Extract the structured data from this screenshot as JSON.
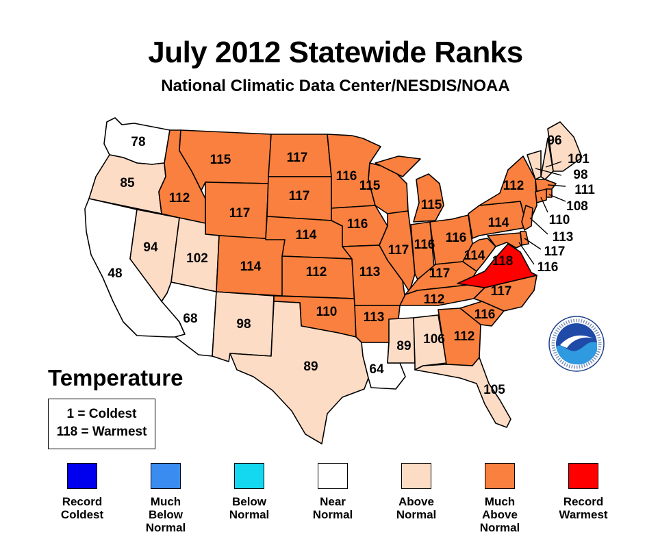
{
  "title": "July 2012 Statewide Ranks",
  "subtitle": "National Climatic Data Center/NESDIS/NOAA",
  "variable_heading": "Temperature",
  "scale_note": {
    "low": "1 = Coldest",
    "high": "118 = Warmest"
  },
  "colors": {
    "record_coldest": "#0000ee",
    "much_below": "#3a8cf0",
    "below": "#14d8f0",
    "near": "#ffffff",
    "above": "#fddcc6",
    "much_above": "#f9803e",
    "record_warmest": "#ff0000"
  },
  "legend": [
    {
      "key": "record_coldest",
      "label": "Record\nColdest"
    },
    {
      "key": "much_below",
      "label": "Much\nBelow\nNormal"
    },
    {
      "key": "below",
      "label": "Below\nNormal"
    },
    {
      "key": "near",
      "label": "Near\nNormal"
    },
    {
      "key": "above",
      "label": "Above\nNormal"
    },
    {
      "key": "much_above",
      "label": "Much\nAbove\nNormal"
    },
    {
      "key": "record_warmest",
      "label": "Record\nWarmest"
    }
  ],
  "states": [
    {
      "id": "WA",
      "rank": "78",
      "category": "near"
    },
    {
      "id": "OR",
      "rank": "85",
      "category": "above"
    },
    {
      "id": "CA",
      "rank": "48",
      "category": "near"
    },
    {
      "id": "NV",
      "rank": "94",
      "category": "above"
    },
    {
      "id": "ID",
      "rank": "112",
      "category": "much_above"
    },
    {
      "id": "MT",
      "rank": "115",
      "category": "much_above"
    },
    {
      "id": "WY",
      "rank": "117",
      "category": "much_above"
    },
    {
      "id": "UT",
      "rank": "102",
      "category": "above"
    },
    {
      "id": "AZ",
      "rank": "68",
      "category": "near"
    },
    {
      "id": "CO",
      "rank": "114",
      "category": "much_above"
    },
    {
      "id": "NM",
      "rank": "98",
      "category": "above"
    },
    {
      "id": "ND",
      "rank": "117",
      "category": "much_above"
    },
    {
      "id": "SD",
      "rank": "117",
      "category": "much_above"
    },
    {
      "id": "NE",
      "rank": "114",
      "category": "much_above"
    },
    {
      "id": "KS",
      "rank": "112",
      "category": "much_above"
    },
    {
      "id": "OK",
      "rank": "110",
      "category": "much_above"
    },
    {
      "id": "TX",
      "rank": "89",
      "category": "above"
    },
    {
      "id": "MN",
      "rank": "116",
      "category": "much_above"
    },
    {
      "id": "IA",
      "rank": "116",
      "category": "much_above"
    },
    {
      "id": "MO",
      "rank": "113",
      "category": "much_above"
    },
    {
      "id": "AR",
      "rank": "113",
      "category": "much_above"
    },
    {
      "id": "LA",
      "rank": "64",
      "category": "near"
    },
    {
      "id": "WI",
      "rank": "115",
      "category": "much_above"
    },
    {
      "id": "IL",
      "rank": "117",
      "category": "much_above"
    },
    {
      "id": "MI",
      "rank": "115",
      "category": "much_above"
    },
    {
      "id": "IN",
      "rank": "116",
      "category": "much_above"
    },
    {
      "id": "OH",
      "rank": "116",
      "category": "much_above"
    },
    {
      "id": "KY",
      "rank": "117",
      "category": "much_above"
    },
    {
      "id": "TN",
      "rank": "112",
      "category": "much_above"
    },
    {
      "id": "MS",
      "rank": "89",
      "category": "above"
    },
    {
      "id": "AL",
      "rank": "106",
      "category": "above"
    },
    {
      "id": "GA",
      "rank": "112",
      "category": "much_above"
    },
    {
      "id": "FL",
      "rank": "105",
      "category": "above"
    },
    {
      "id": "SC",
      "rank": "116",
      "category": "much_above"
    },
    {
      "id": "NC",
      "rank": "117",
      "category": "much_above"
    },
    {
      "id": "VA",
      "rank": "118",
      "category": "record_warmest"
    },
    {
      "id": "WV",
      "rank": "114",
      "category": "much_above"
    },
    {
      "id": "PA",
      "rank": "114",
      "category": "much_above"
    },
    {
      "id": "NY",
      "rank": "112",
      "category": "much_above"
    },
    {
      "id": "ME",
      "rank": "96",
      "category": "above"
    },
    {
      "id": "NH",
      "rank": "101",
      "category": "above"
    },
    {
      "id": "VT",
      "rank": "98",
      "category": "above"
    },
    {
      "id": "MA",
      "rank": "111",
      "category": "much_above"
    },
    {
      "id": "RI",
      "rank": "108",
      "category": "much_above"
    },
    {
      "id": "CT",
      "rank": "110",
      "category": "much_above"
    },
    {
      "id": "NJ",
      "rank": "113",
      "category": "much_above"
    },
    {
      "id": "DE",
      "rank": "117",
      "category": "much_above"
    },
    {
      "id": "MD",
      "rank": "116",
      "category": "much_above"
    }
  ]
}
